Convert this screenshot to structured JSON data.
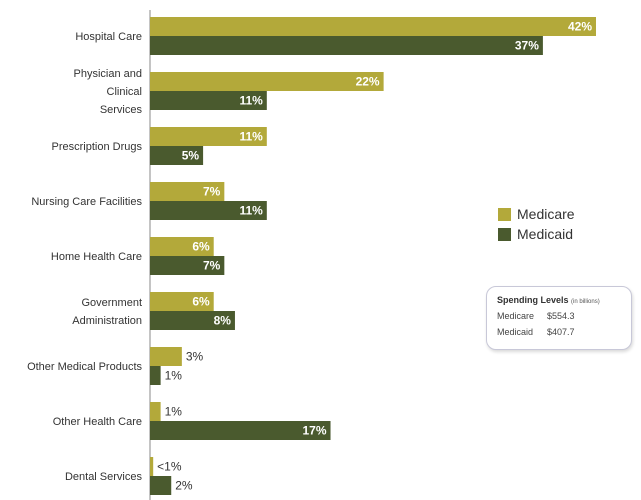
{
  "chart_data": {
    "type": "bar",
    "orientation": "horizontal",
    "categories": [
      "Hospital Care",
      "Physician and Clinical Services",
      "Prescription Drugs",
      "Nursing Care Facilities",
      "Home Health Care",
      "Government Administration",
      "Other Medical Products",
      "Other Health Care",
      "Dental Services"
    ],
    "series": [
      {
        "name": "Medicare",
        "color": "#b3a93a",
        "values": [
          42,
          22,
          11,
          7,
          6,
          6,
          3,
          1,
          0.3
        ],
        "labels": [
          "42%",
          "22%",
          "11%",
          "7%",
          "6%",
          "6%",
          "3%",
          "1%",
          "<1%"
        ]
      },
      {
        "name": "Medicaid",
        "color": "#4a5a2e",
        "values": [
          37,
          11,
          5,
          11,
          7,
          8,
          1,
          17,
          2
        ],
        "labels": [
          "37%",
          "11%",
          "5%",
          "11%",
          "7%",
          "8%",
          "1%",
          "17%",
          "2%"
        ]
      }
    ],
    "xlim": [
      0,
      42
    ],
    "grid": false,
    "legend": "right"
  },
  "spending": {
    "title": "Spending Levels",
    "units": "(in billions)",
    "rows": [
      {
        "label": "Medicare",
        "value": "$554.3"
      },
      {
        "label": "Medicaid",
        "value": "$407.7"
      }
    ]
  }
}
